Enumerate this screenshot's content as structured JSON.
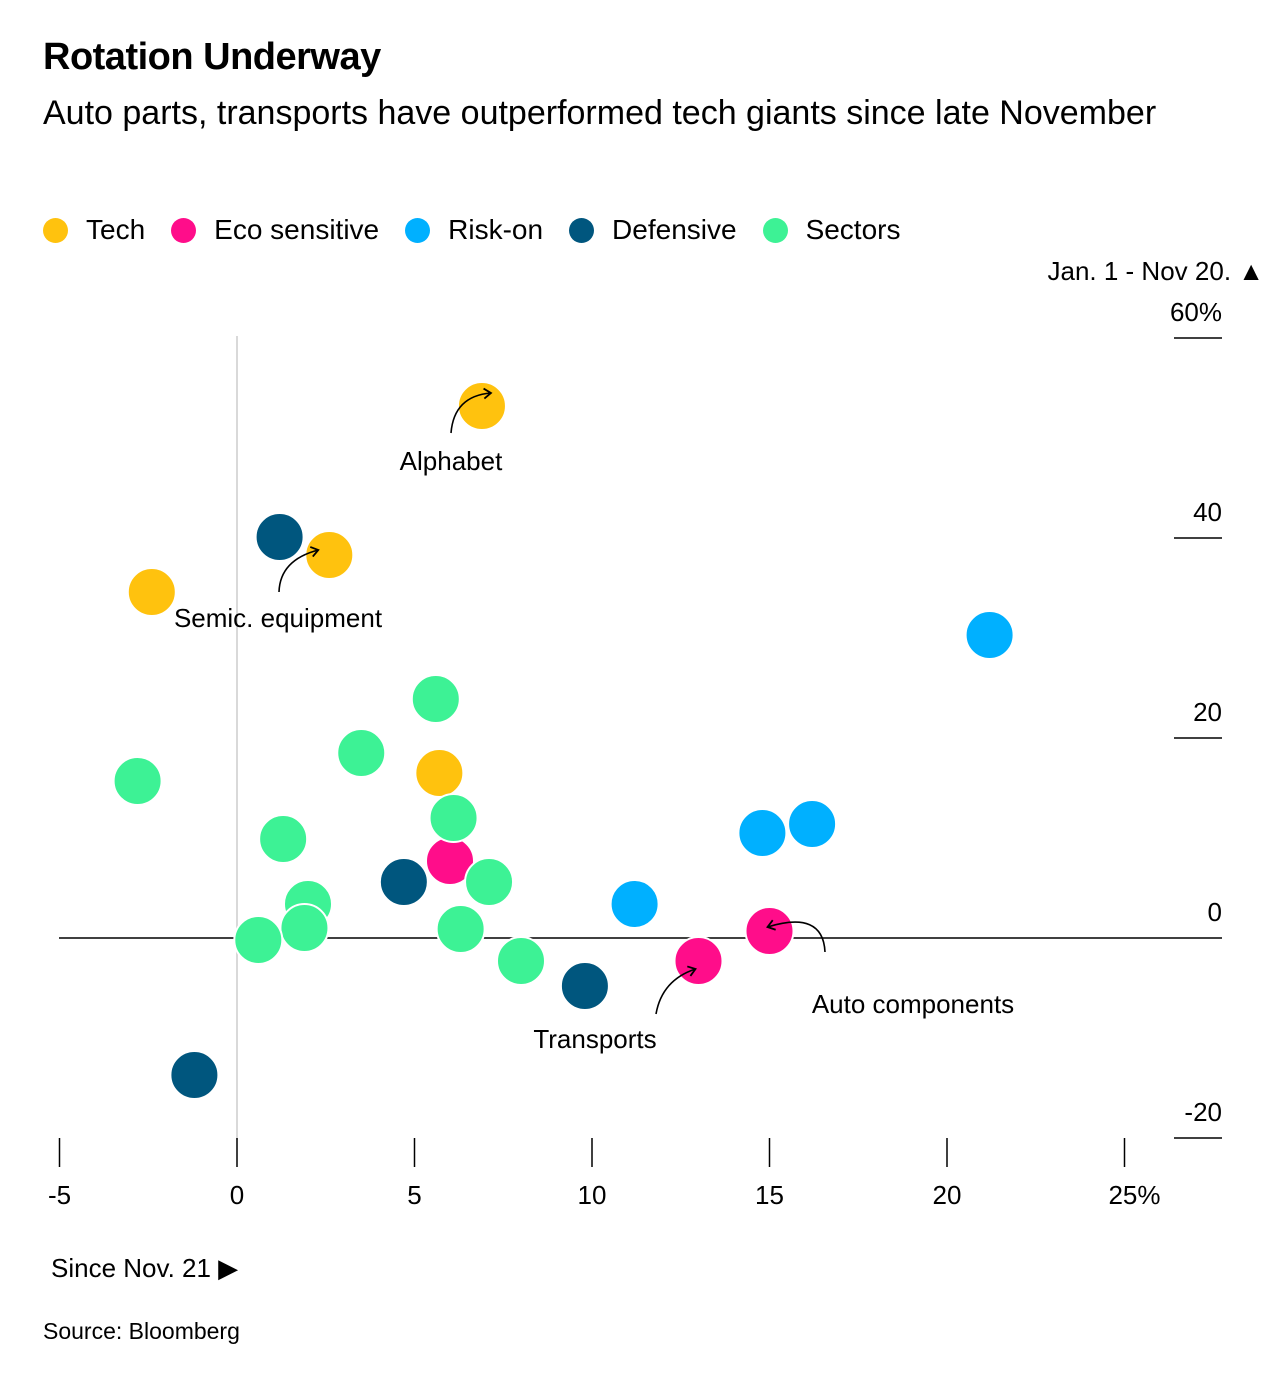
{
  "header": {
    "title": "Rotation Underway",
    "subtitle": "Auto parts, transports have outperformed tech giants since late November"
  },
  "legend": [
    {
      "label": "Tech",
      "color": "#FFC20E"
    },
    {
      "label": "Eco sensitive",
      "color": "#FF0D8A"
    },
    {
      "label": "Risk-on",
      "color": "#00B0FF"
    },
    {
      "label": "Defensive",
      "color": "#00567E"
    },
    {
      "label": "Sectors",
      "color": "#3DF295"
    }
  ],
  "footer": {
    "source": "Source: Bloomberg"
  },
  "chart_data": {
    "type": "scatter",
    "title": "Rotation Underway",
    "subtitle": "Auto parts, transports have outperformed tech giants since late November",
    "xlabel": "Since Nov. 21 ▶",
    "ylabel": "Jan. 1 - Nov 20. ▲",
    "xlim": [
      -5,
      27
    ],
    "ylim": [
      -20,
      60
    ],
    "xticks": [
      -5,
      0,
      5,
      10,
      15,
      20,
      25
    ],
    "xtick_labels": [
      "-5",
      "0",
      "5",
      "10",
      "15",
      "20",
      "25%"
    ],
    "yticks": [
      60,
      40,
      20,
      0,
      -20
    ],
    "ytick_labels": [
      "60%",
      "40",
      "20",
      "0",
      "-20"
    ],
    "grid": false,
    "legend_position": "top-left",
    "series": [
      {
        "name": "Tech",
        "color": "#FFC20E",
        "points": [
          {
            "x": 6.9,
            "y": 53.2,
            "label": "Alphabet"
          },
          {
            "x": 2.6,
            "y": 38.3,
            "label": "Semic. equipment"
          },
          {
            "x": -2.4,
            "y": 34.6
          },
          {
            "x": 5.7,
            "y": 16.5
          }
        ]
      },
      {
        "name": "Eco sensitive",
        "color": "#FF0D8A",
        "points": [
          {
            "x": 6.0,
            "y": 7.7
          },
          {
            "x": 13.0,
            "y": -2.3,
            "label": "Transports"
          },
          {
            "x": 15.0,
            "y": 0.7,
            "label": "Auto components"
          }
        ]
      },
      {
        "name": "Risk-on",
        "color": "#00B0FF",
        "points": [
          {
            "x": 21.2,
            "y": 30.3
          },
          {
            "x": 16.2,
            "y": 11.4
          },
          {
            "x": 14.8,
            "y": 10.5
          },
          {
            "x": 11.2,
            "y": 3.4
          }
        ]
      },
      {
        "name": "Defensive",
        "color": "#00567E",
        "points": [
          {
            "x": 1.2,
            "y": 40.1
          },
          {
            "x": 4.7,
            "y": 5.6
          },
          {
            "x": 9.8,
            "y": -4.8
          },
          {
            "x": -1.2,
            "y": -13.7
          }
        ]
      },
      {
        "name": "Sectors",
        "color": "#3DF295",
        "points": [
          {
            "x": 5.6,
            "y": 23.9
          },
          {
            "x": 3.5,
            "y": 18.5
          },
          {
            "x": -2.8,
            "y": 15.7
          },
          {
            "x": 6.1,
            "y": 12.0
          },
          {
            "x": 1.3,
            "y": 9.9
          },
          {
            "x": 7.1,
            "y": 5.6
          },
          {
            "x": 2.0,
            "y": 3.4
          },
          {
            "x": 1.9,
            "y": 1.0
          },
          {
            "x": 6.3,
            "y": 0.9
          },
          {
            "x": 0.6,
            "y": -0.2
          },
          {
            "x": 8.0,
            "y": -2.3
          }
        ]
      }
    ]
  }
}
